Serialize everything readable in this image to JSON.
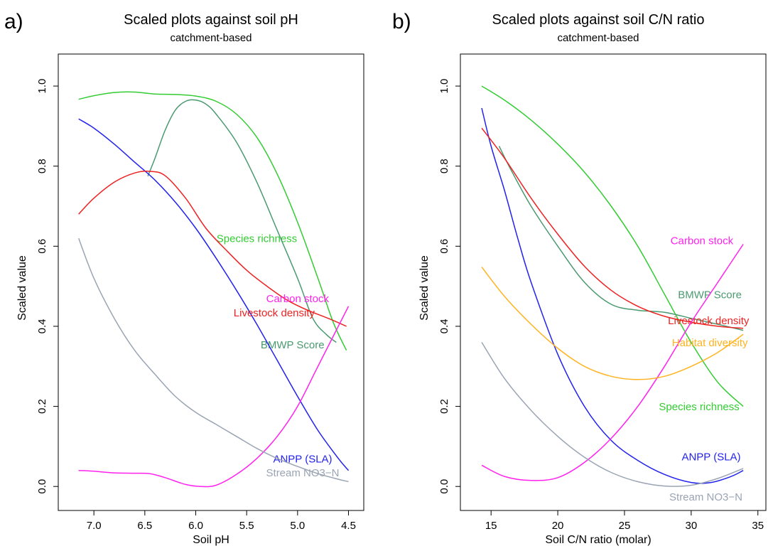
{
  "colors": {
    "species_richness": "#33cc33",
    "bmwp": "#4a9a70",
    "anpp": "#2222ee",
    "livestock": "#ee2222",
    "carbon": "#ff22ee",
    "stream_no3": "#9aa4b4",
    "habitat": "#ffb320"
  },
  "chart_data": [
    {
      "type": "line",
      "panel_letter": "a)",
      "title": "Scaled plots against soil pH",
      "subtitle": "catchment-based",
      "xlabel": "Soil pH",
      "ylabel": "Scaled value",
      "xlim": [
        7.35,
        4.35
      ],
      "ylim": [
        -0.06,
        1.08
      ],
      "x_reversed": true,
      "xticks": [
        7.0,
        6.5,
        6.0,
        5.5,
        5.0,
        4.5
      ],
      "xtick_labels": [
        "7.0",
        "6.5",
        "6.0",
        "5.5",
        "5.0",
        "4.5"
      ],
      "yticks": [
        0.0,
        0.2,
        0.4,
        0.6,
        0.8,
        1.0
      ],
      "ytick_labels": [
        "0.0",
        "0.2",
        "0.4",
        "0.6",
        "0.8",
        "1.0"
      ],
      "grid": false,
      "series": [
        {
          "name": "Species richness",
          "color_key": "species_richness",
          "label_at": [
            5.4,
            0.61
          ],
          "points": [
            [
              7.15,
              0.967
            ],
            [
              7.0,
              0.976
            ],
            [
              6.8,
              0.984
            ],
            [
              6.6,
              0.985
            ],
            [
              6.4,
              0.98
            ],
            [
              6.2,
              0.979
            ],
            [
              6.0,
              0.975
            ],
            [
              5.8,
              0.962
            ],
            [
              5.6,
              0.93
            ],
            [
              5.4,
              0.872
            ],
            [
              5.2,
              0.78
            ],
            [
              5.0,
              0.66
            ],
            [
              4.8,
              0.52
            ],
            [
              4.65,
              0.41
            ],
            [
              4.52,
              0.34
            ]
          ]
        },
        {
          "name": "BMWP Score",
          "color_key": "bmwp",
          "label_at": [
            5.05,
            0.345
          ],
          "points": [
            [
              6.47,
              0.775
            ],
            [
              6.4,
              0.82
            ],
            [
              6.3,
              0.89
            ],
            [
              6.2,
              0.94
            ],
            [
              6.1,
              0.962
            ],
            [
              6.0,
              0.965
            ],
            [
              5.9,
              0.955
            ],
            [
              5.8,
              0.93
            ],
            [
              5.6,
              0.86
            ],
            [
              5.4,
              0.76
            ],
            [
              5.2,
              0.64
            ],
            [
              5.0,
              0.52
            ],
            [
              4.85,
              0.42
            ],
            [
              4.72,
              0.38
            ],
            [
              4.62,
              0.36
            ]
          ]
        },
        {
          "name": "ANPP (SLA)",
          "color_key": "anpp",
          "label_at": [
            4.95,
            0.06
          ],
          "points": [
            [
              7.15,
              0.918
            ],
            [
              7.0,
              0.895
            ],
            [
              6.8,
              0.855
            ],
            [
              6.6,
              0.81
            ],
            [
              6.4,
              0.765
            ],
            [
              6.2,
              0.71
            ],
            [
              6.0,
              0.645
            ],
            [
              5.8,
              0.57
            ],
            [
              5.6,
              0.49
            ],
            [
              5.4,
              0.405
            ],
            [
              5.2,
              0.315
            ],
            [
              5.0,
              0.225
            ],
            [
              4.8,
              0.14
            ],
            [
              4.6,
              0.07
            ],
            [
              4.5,
              0.04
            ]
          ]
        },
        {
          "name": "Livestock density",
          "color_key": "livestock",
          "label_at": [
            5.23,
            0.425
          ],
          "points": [
            [
              7.15,
              0.68
            ],
            [
              7.0,
              0.72
            ],
            [
              6.8,
              0.76
            ],
            [
              6.6,
              0.783
            ],
            [
              6.45,
              0.787
            ],
            [
              6.3,
              0.776
            ],
            [
              6.1,
              0.72
            ],
            [
              5.9,
              0.645
            ],
            [
              5.7,
              0.59
            ],
            [
              5.5,
              0.54
            ],
            [
              5.3,
              0.5
            ],
            [
              5.1,
              0.465
            ],
            [
              4.9,
              0.44
            ],
            [
              4.7,
              0.42
            ],
            [
              4.52,
              0.4
            ]
          ]
        },
        {
          "name": "Carbon stock",
          "color_key": "carbon",
          "label_at": [
            5.0,
            0.46
          ],
          "points": [
            [
              7.15,
              0.04
            ],
            [
              7.0,
              0.038
            ],
            [
              6.8,
              0.034
            ],
            [
              6.6,
              0.033
            ],
            [
              6.45,
              0.032
            ],
            [
              6.3,
              0.022
            ],
            [
              6.1,
              0.005
            ],
            [
              5.95,
              0.0
            ],
            [
              5.8,
              0.003
            ],
            [
              5.6,
              0.03
            ],
            [
              5.4,
              0.07
            ],
            [
              5.2,
              0.125
            ],
            [
              5.0,
              0.2
            ],
            [
              4.8,
              0.3
            ],
            [
              4.6,
              0.4
            ],
            [
              4.5,
              0.45
            ]
          ]
        },
        {
          "name": "Stream NO3−N",
          "color_key": "stream_no3",
          "label_at": [
            4.95,
            0.025
          ],
          "points": [
            [
              7.15,
              0.62
            ],
            [
              7.0,
              0.52
            ],
            [
              6.8,
              0.42
            ],
            [
              6.6,
              0.34
            ],
            [
              6.4,
              0.28
            ],
            [
              6.2,
              0.225
            ],
            [
              6.0,
              0.185
            ],
            [
              5.8,
              0.155
            ],
            [
              5.6,
              0.125
            ],
            [
              5.4,
              0.095
            ],
            [
              5.2,
              0.07
            ],
            [
              5.0,
              0.05
            ],
            [
              4.8,
              0.032
            ],
            [
              4.6,
              0.018
            ],
            [
              4.5,
              0.012
            ]
          ]
        }
      ]
    },
    {
      "type": "line",
      "panel_letter": "b)",
      "title": "Scaled plots against soil C/N ratio",
      "subtitle": "catchment-based",
      "xlabel": "Soil C/N ratio (molar)",
      "ylabel": "Scaled value",
      "xlim": [
        12.7,
        35.6
      ],
      "ylim": [
        -0.06,
        1.08
      ],
      "x_reversed": false,
      "xticks": [
        15,
        20,
        25,
        30,
        35
      ],
      "xtick_labels": [
        "15",
        "20",
        "25",
        "30",
        "35"
      ],
      "yticks": [
        0.0,
        0.2,
        0.4,
        0.6,
        0.8,
        1.0
      ],
      "ytick_labels": [
        "0.0",
        "0.2",
        "0.4",
        "0.6",
        "0.8",
        "1.0"
      ],
      "grid": false,
      "series": [
        {
          "name": "Species richness",
          "color_key": "species_richness",
          "label_at": [
            30.6,
            0.19
          ],
          "points": [
            [
              14.3,
              1.0
            ],
            [
              16,
              0.965
            ],
            [
              18,
              0.915
            ],
            [
              20,
              0.855
            ],
            [
              22,
              0.785
            ],
            [
              24,
              0.7
            ],
            [
              26,
              0.6
            ],
            [
              28,
              0.48
            ],
            [
              30,
              0.36
            ],
            [
              32,
              0.26
            ],
            [
              33.9,
              0.2
            ]
          ]
        },
        {
          "name": "BMWP Score",
          "color_key": "bmwp",
          "label_at": [
            31.4,
            0.47
          ],
          "points": [
            [
              15.6,
              0.85
            ],
            [
              16.5,
              0.79
            ],
            [
              18,
              0.7
            ],
            [
              20,
              0.6
            ],
            [
              22,
              0.51
            ],
            [
              24,
              0.455
            ],
            [
              26,
              0.44
            ],
            [
              28,
              0.435
            ],
            [
              30,
              0.42
            ],
            [
              32,
              0.405
            ],
            [
              33.9,
              0.39
            ]
          ]
        },
        {
          "name": "ANPP (SLA)",
          "color_key": "anpp",
          "label_at": [
            31.5,
            0.065
          ],
          "points": [
            [
              14.3,
              0.945
            ],
            [
              15,
              0.85
            ],
            [
              16,
              0.74
            ],
            [
              17,
              0.62
            ],
            [
              18,
              0.51
            ],
            [
              20,
              0.33
            ],
            [
              22,
              0.2
            ],
            [
              24,
              0.115
            ],
            [
              26,
              0.065
            ],
            [
              28,
              0.03
            ],
            [
              30,
              0.01
            ],
            [
              31.5,
              0.01
            ],
            [
              33,
              0.025
            ],
            [
              33.9,
              0.04
            ]
          ]
        },
        {
          "name": "Livestock density",
          "color_key": "livestock",
          "label_at": [
            31.3,
            0.405
          ],
          "points": [
            [
              14.3,
              0.895
            ],
            [
              16,
              0.82
            ],
            [
              18,
              0.72
            ],
            [
              20,
              0.63
            ],
            [
              22,
              0.55
            ],
            [
              24,
              0.49
            ],
            [
              26,
              0.45
            ],
            [
              28,
              0.425
            ],
            [
              30,
              0.41
            ],
            [
              32,
              0.4
            ],
            [
              33.9,
              0.395
            ]
          ]
        },
        {
          "name": "Carbon stock",
          "color_key": "carbon",
          "label_at": [
            30.8,
            0.605
          ],
          "points": [
            [
              14.3,
              0.053
            ],
            [
              16,
              0.025
            ],
            [
              18,
              0.015
            ],
            [
              20,
              0.022
            ],
            [
              22,
              0.06
            ],
            [
              24,
              0.12
            ],
            [
              26,
              0.2
            ],
            [
              28,
              0.3
            ],
            [
              30,
              0.41
            ],
            [
              32,
              0.51
            ],
            [
              33.9,
              0.605
            ]
          ]
        },
        {
          "name": "Habitat diversity",
          "color_key": "habitat",
          "label_at": [
            31.4,
            0.35
          ],
          "points": [
            [
              14.3,
              0.548
            ],
            [
              16,
              0.475
            ],
            [
              18,
              0.405
            ],
            [
              20,
              0.345
            ],
            [
              22,
              0.3
            ],
            [
              24,
              0.275
            ],
            [
              26,
              0.267
            ],
            [
              28,
              0.275
            ],
            [
              30,
              0.3
            ],
            [
              32,
              0.335
            ],
            [
              33.9,
              0.38
            ]
          ]
        },
        {
          "name": "Stream NO3−N",
          "color_key": "stream_no3",
          "label_at": [
            31.1,
            -0.035
          ],
          "points": [
            [
              14.3,
              0.36
            ],
            [
              16,
              0.27
            ],
            [
              18,
              0.19
            ],
            [
              20,
              0.125
            ],
            [
              22,
              0.073
            ],
            [
              24,
              0.035
            ],
            [
              26,
              0.012
            ],
            [
              28,
              0.001
            ],
            [
              30,
              0.003
            ],
            [
              32,
              0.02
            ],
            [
              33.9,
              0.045
            ]
          ]
        }
      ]
    }
  ]
}
